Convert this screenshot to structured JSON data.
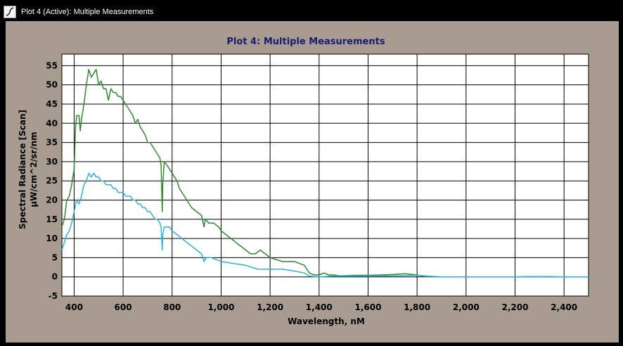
{
  "window": {
    "title": "Plot 4 (Active): Multiple Measurements",
    "icon": "plot-icon"
  },
  "colors": {
    "background": "#000000",
    "frame": "#a89c90",
    "plot_area": "#ffffff",
    "title": "#1b1b6f",
    "grid": "#000000",
    "series_green": "#2e8b2e",
    "series_cyan": "#28b4dc"
  },
  "chart_data": {
    "type": "line",
    "title": "Plot 4: Multiple Measurements",
    "xlabel": "Wavelength, nM",
    "ylabel_line1": "Spectral Radiance [Scan]",
    "ylabel_line2": "µW/cm^2/sr/nm",
    "xlim": [
      350,
      2500
    ],
    "ylim": [
      -5,
      58
    ],
    "x_ticks": [
      400,
      600,
      800,
      1000,
      1200,
      1400,
      1600,
      1800,
      2000,
      2200,
      2400
    ],
    "x_tick_labels": [
      "400",
      "600",
      "800",
      "1,000",
      "1,200",
      "1,400",
      "1,600",
      "1,800",
      "2,000",
      "2,200",
      "2,400"
    ],
    "y_ticks": [
      -5,
      0,
      5,
      10,
      15,
      20,
      25,
      30,
      35,
      40,
      45,
      50,
      55
    ],
    "y_tick_labels": [
      "-5",
      "0",
      "5",
      "10",
      "15",
      "20",
      "25",
      "30",
      "35",
      "40",
      "45",
      "50",
      "55"
    ],
    "grid": true,
    "series": [
      {
        "color": "#2e8b2e",
        "points": [
          [
            350,
            13
          ],
          [
            360,
            15
          ],
          [
            370,
            20
          ],
          [
            380,
            21
          ],
          [
            390,
            24
          ],
          [
            400,
            28
          ],
          [
            405,
            38
          ],
          [
            410,
            42
          ],
          [
            420,
            42
          ],
          [
            425,
            38
          ],
          [
            430,
            41
          ],
          [
            440,
            45
          ],
          [
            450,
            50
          ],
          [
            460,
            54
          ],
          [
            470,
            52
          ],
          [
            480,
            53
          ],
          [
            490,
            54
          ],
          [
            500,
            50
          ],
          [
            510,
            51
          ],
          [
            520,
            49
          ],
          [
            530,
            49
          ],
          [
            540,
            46
          ],
          [
            550,
            49
          ],
          [
            560,
            48
          ],
          [
            570,
            48
          ],
          [
            580,
            47
          ],
          [
            590,
            47
          ],
          [
            600,
            46
          ],
          [
            610,
            45
          ],
          [
            620,
            44
          ],
          [
            630,
            43
          ],
          [
            640,
            42
          ],
          [
            650,
            40
          ],
          [
            660,
            41
          ],
          [
            670,
            39
          ],
          [
            680,
            38
          ],
          [
            690,
            37
          ],
          [
            700,
            35
          ],
          [
            710,
            35
          ],
          [
            720,
            34
          ],
          [
            730,
            33
          ],
          [
            740,
            32
          ],
          [
            750,
            31
          ],
          [
            755,
            29
          ],
          [
            760,
            17
          ],
          [
            762,
            24
          ],
          [
            768,
            30
          ],
          [
            780,
            29
          ],
          [
            790,
            28
          ],
          [
            800,
            27
          ],
          [
            810,
            26
          ],
          [
            820,
            25
          ],
          [
            830,
            23
          ],
          [
            840,
            22
          ],
          [
            850,
            21
          ],
          [
            860,
            20
          ],
          [
            880,
            18
          ],
          [
            900,
            17
          ],
          [
            920,
            16
          ],
          [
            930,
            13
          ],
          [
            935,
            15
          ],
          [
            950,
            14
          ],
          [
            970,
            14
          ],
          [
            990,
            13
          ],
          [
            1000,
            12
          ],
          [
            1020,
            11
          ],
          [
            1040,
            10
          ],
          [
            1060,
            9
          ],
          [
            1080,
            8
          ],
          [
            1100,
            7
          ],
          [
            1120,
            6
          ],
          [
            1140,
            6
          ],
          [
            1160,
            7
          ],
          [
            1180,
            6
          ],
          [
            1200,
            5
          ],
          [
            1250,
            4
          ],
          [
            1300,
            4
          ],
          [
            1340,
            3
          ],
          [
            1360,
            1
          ],
          [
            1380,
            0.5
          ],
          [
            1400,
            0.5
          ],
          [
            1420,
            1
          ],
          [
            1440,
            0.5
          ],
          [
            1460,
            0.5
          ],
          [
            1480,
            0.3
          ],
          [
            1500,
            0.3
          ],
          [
            1550,
            0.4
          ],
          [
            1600,
            0.4
          ],
          [
            1650,
            0.5
          ],
          [
            1700,
            0.6
          ],
          [
            1750,
            0.8
          ],
          [
            1800,
            0.5
          ],
          [
            1830,
            0.1
          ],
          [
            1900,
            0
          ],
          [
            2000,
            0
          ],
          [
            2100,
            0
          ],
          [
            2200,
            0
          ],
          [
            2300,
            0.1
          ],
          [
            2400,
            0
          ],
          [
            2500,
            0
          ]
        ]
      },
      {
        "color": "#28b4dc",
        "points": [
          [
            350,
            7
          ],
          [
            360,
            9
          ],
          [
            370,
            11
          ],
          [
            380,
            12
          ],
          [
            390,
            14
          ],
          [
            400,
            17
          ],
          [
            410,
            20
          ],
          [
            420,
            19
          ],
          [
            425,
            20
          ],
          [
            430,
            21
          ],
          [
            440,
            24
          ],
          [
            450,
            25
          ],
          [
            460,
            27
          ],
          [
            470,
            26
          ],
          [
            480,
            27
          ],
          [
            490,
            26
          ],
          [
            500,
            26
          ],
          [
            510,
            25
          ],
          [
            520,
            25
          ],
          [
            530,
            24
          ],
          [
            540,
            24
          ],
          [
            550,
            24
          ],
          [
            560,
            23
          ],
          [
            570,
            23
          ],
          [
            580,
            22
          ],
          [
            590,
            22
          ],
          [
            600,
            22
          ],
          [
            610,
            21
          ],
          [
            620,
            21
          ],
          [
            630,
            21
          ],
          [
            640,
            20
          ],
          [
            650,
            20
          ],
          [
            660,
            19
          ],
          [
            670,
            19
          ],
          [
            680,
            18
          ],
          [
            690,
            18
          ],
          [
            700,
            17
          ],
          [
            710,
            17
          ],
          [
            720,
            16
          ],
          [
            730,
            15
          ],
          [
            740,
            15
          ],
          [
            750,
            14
          ],
          [
            755,
            13
          ],
          [
            760,
            7
          ],
          [
            762,
            11
          ],
          [
            768,
            13
          ],
          [
            780,
            13
          ],
          [
            790,
            13
          ],
          [
            800,
            12
          ],
          [
            820,
            11
          ],
          [
            840,
            10
          ],
          [
            860,
            9
          ],
          [
            880,
            8
          ],
          [
            900,
            7
          ],
          [
            920,
            6
          ],
          [
            930,
            4
          ],
          [
            940,
            5
          ],
          [
            960,
            5
          ],
          [
            980,
            4.5
          ],
          [
            1000,
            4
          ],
          [
            1050,
            3.5
          ],
          [
            1100,
            3
          ],
          [
            1150,
            2
          ],
          [
            1200,
            2
          ],
          [
            1250,
            2
          ],
          [
            1300,
            1.5
          ],
          [
            1340,
            1
          ],
          [
            1360,
            0.2
          ],
          [
            1400,
            0
          ],
          [
            1450,
            0.2
          ],
          [
            1500,
            0.2
          ],
          [
            1600,
            0.2
          ],
          [
            1700,
            0.3
          ],
          [
            1800,
            0.4
          ],
          [
            1900,
            0
          ],
          [
            2000,
            0
          ],
          [
            2100,
            0
          ],
          [
            2200,
            0
          ],
          [
            2300,
            0.1
          ],
          [
            2400,
            0
          ],
          [
            2500,
            0
          ]
        ]
      }
    ]
  }
}
